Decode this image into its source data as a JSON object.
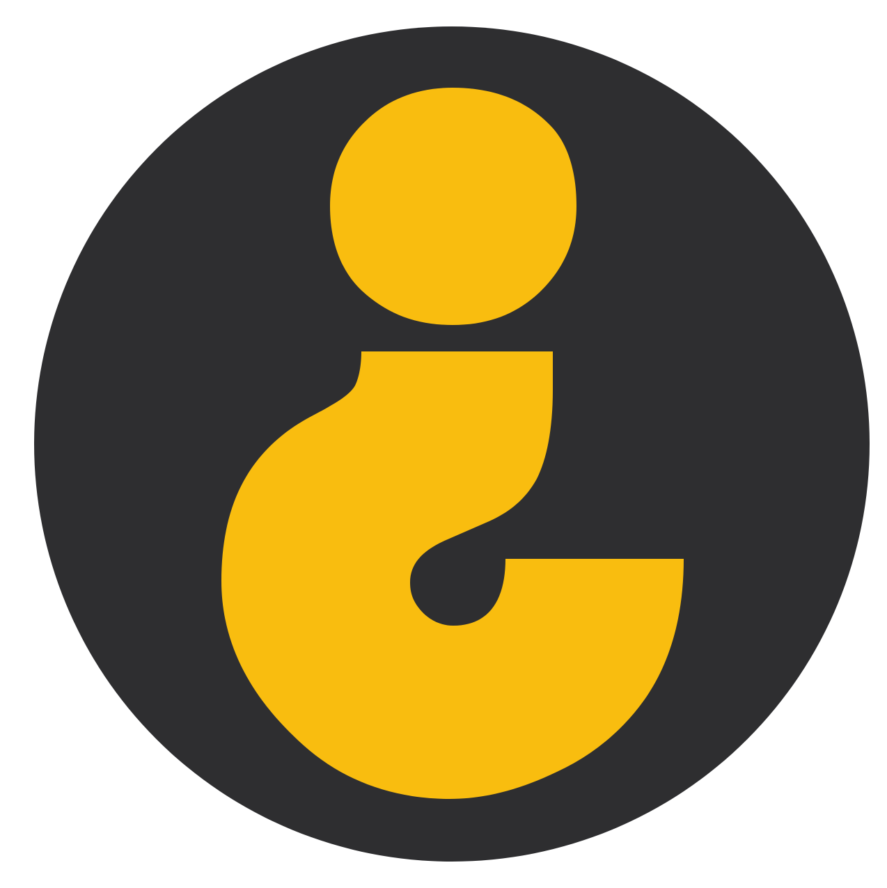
{
  "logo": {
    "icon": "inverted-question-mark-icon",
    "colors": {
      "background": "#ffffff",
      "circle": "#2e2e30",
      "glyph": "#f9bd0f"
    }
  }
}
